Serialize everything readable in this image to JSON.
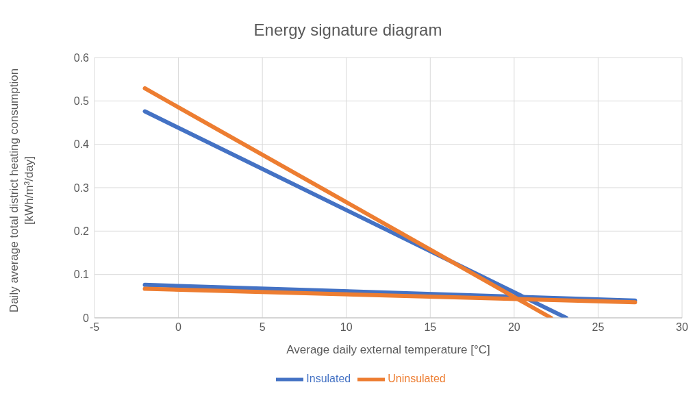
{
  "chart_data": {
    "type": "line",
    "title": "Energy signature diagram",
    "xlabel": "Average daily external temperature [°C]",
    "ylabel": "Daily average total district heating consumption\n[kWh/m³/day]",
    "series": [
      {
        "name": "Insulated",
        "color": "#4472c4",
        "x": [
          -2,
          23.1
        ],
        "values": [
          0.476,
          0
        ]
      },
      {
        "color": "#4472c4",
        "x": [
          -2,
          27.2
        ],
        "values": [
          0.076,
          0.04
        ]
      },
      {
        "name": "Uninsulated",
        "color": "#ed7d31",
        "x": [
          -2,
          22.2
        ],
        "values": [
          0.529,
          0
        ]
      },
      {
        "color": "#ed7d31",
        "x": [
          -2,
          27.2
        ],
        "values": [
          0.067,
          0.036
        ]
      }
    ],
    "xlim": [
      -5,
      30
    ],
    "xticks": [
      -5,
      0,
      5,
      10,
      15,
      20,
      25,
      30
    ],
    "ylim": [
      0,
      0.6
    ],
    "yticks": [
      0,
      0.1,
      0.2,
      0.3,
      0.4,
      0.5,
      0.6
    ],
    "grid": true,
    "legend": "bottom",
    "marker": "none",
    "line_style": "solid"
  }
}
